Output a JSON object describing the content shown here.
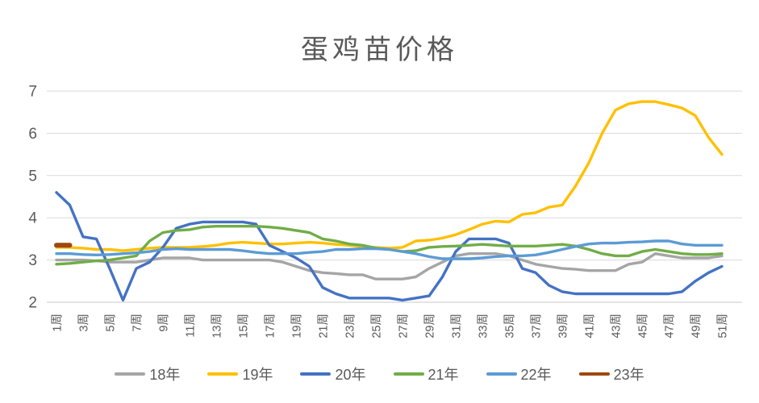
{
  "title": "蛋鸡苗价格",
  "chart_data": {
    "type": "line",
    "title": "蛋鸡苗价格",
    "xlabel": "",
    "ylabel": "",
    "ylim": [
      2,
      7
    ],
    "y_ticks": [
      7,
      6,
      5,
      4,
      3,
      2
    ],
    "grid": true,
    "legend_position": "bottom",
    "x_unit": "week",
    "x_tick_labels": [
      "1周",
      "3周",
      "5周",
      "7周",
      "9周",
      "11周",
      "13周",
      "15周",
      "17周",
      "19周",
      "21周",
      "23周",
      "25周",
      "27周",
      "29周",
      "31周",
      "33周",
      "35周",
      "37周",
      "39周",
      "41周",
      "43周",
      "45周",
      "47周",
      "49周",
      "51周"
    ],
    "x_weeks": 51,
    "series": [
      {
        "name": "18年",
        "color": "#A5A5A5",
        "values": [
          3.0,
          3.0,
          3.0,
          2.98,
          2.95,
          2.95,
          2.95,
          3.0,
          3.05,
          3.05,
          3.05,
          3.0,
          3.0,
          3.0,
          3.0,
          3.0,
          3.0,
          2.95,
          2.85,
          2.75,
          2.7,
          2.68,
          2.65,
          2.65,
          2.55,
          2.55,
          2.55,
          2.6,
          2.8,
          2.95,
          3.1,
          3.15,
          3.15,
          3.15,
          3.1,
          3.0,
          2.9,
          2.85,
          2.8,
          2.78,
          2.75,
          2.75,
          2.75,
          2.9,
          2.95,
          3.15,
          3.1,
          3.05,
          3.05,
          3.05,
          3.1
        ]
      },
      {
        "name": "19年",
        "color": "#FFC000",
        "values": [
          3.3,
          3.3,
          3.28,
          3.25,
          3.25,
          3.22,
          3.25,
          3.28,
          3.3,
          3.3,
          3.3,
          3.32,
          3.35,
          3.4,
          3.42,
          3.4,
          3.38,
          3.38,
          3.4,
          3.42,
          3.4,
          3.37,
          3.35,
          3.32,
          3.3,
          3.28,
          3.3,
          3.45,
          3.47,
          3.52,
          3.6,
          3.72,
          3.85,
          3.92,
          3.9,
          4.08,
          4.12,
          4.25,
          4.3,
          4.75,
          5.3,
          6.0,
          6.55,
          6.7,
          6.75,
          6.75,
          6.68,
          6.6,
          6.42,
          5.9,
          5.5
        ]
      },
      {
        "name": "20年",
        "color": "#4472C4",
        "values": [
          4.6,
          4.3,
          3.55,
          3.5,
          2.8,
          2.05,
          2.8,
          2.95,
          3.3,
          3.75,
          3.85,
          3.9,
          3.9,
          3.9,
          3.9,
          3.85,
          3.35,
          3.2,
          3.05,
          2.85,
          2.35,
          2.2,
          2.1,
          2.1,
          2.1,
          2.1,
          2.05,
          2.1,
          2.15,
          2.6,
          3.2,
          3.5,
          3.5,
          3.5,
          3.4,
          2.8,
          2.7,
          2.4,
          2.25,
          2.2,
          2.2,
          2.2,
          2.2,
          2.2,
          2.2,
          2.2,
          2.2,
          2.25,
          2.5,
          2.7,
          2.85
        ]
      },
      {
        "name": "21年",
        "color": "#70AD47",
        "values": [
          2.9,
          2.92,
          2.95,
          2.98,
          3.0,
          3.05,
          3.1,
          3.45,
          3.65,
          3.7,
          3.72,
          3.78,
          3.8,
          3.8,
          3.8,
          3.8,
          3.78,
          3.75,
          3.7,
          3.65,
          3.5,
          3.45,
          3.38,
          3.35,
          3.28,
          3.25,
          3.2,
          3.22,
          3.3,
          3.32,
          3.33,
          3.35,
          3.37,
          3.35,
          3.33,
          3.33,
          3.33,
          3.35,
          3.37,
          3.33,
          3.25,
          3.15,
          3.1,
          3.1,
          3.2,
          3.25,
          3.2,
          3.15,
          3.13,
          3.13,
          3.15
        ]
      },
      {
        "name": "22年",
        "color": "#5B9BD5",
        "values": [
          3.15,
          3.15,
          3.13,
          3.12,
          3.13,
          3.15,
          3.17,
          3.2,
          3.25,
          3.27,
          3.25,
          3.25,
          3.25,
          3.25,
          3.22,
          3.18,
          3.15,
          3.15,
          3.15,
          3.18,
          3.2,
          3.25,
          3.25,
          3.27,
          3.27,
          3.25,
          3.2,
          3.15,
          3.08,
          3.03,
          3.03,
          3.03,
          3.05,
          3.08,
          3.1,
          3.1,
          3.12,
          3.18,
          3.25,
          3.32,
          3.38,
          3.4,
          3.4,
          3.42,
          3.43,
          3.45,
          3.45,
          3.38,
          3.35,
          3.35,
          3.35
        ]
      },
      {
        "name": "23年",
        "color": "#9E480E",
        "values": [
          3.35,
          3.35
        ]
      }
    ],
    "style": {
      "gridline_color": "#D9D9D9",
      "axis_line_color": "#C9C9C9",
      "tick_label_color": "#595959",
      "title_color": "#595959",
      "line_width": 3.4,
      "short_series_line_width": 6
    }
  }
}
